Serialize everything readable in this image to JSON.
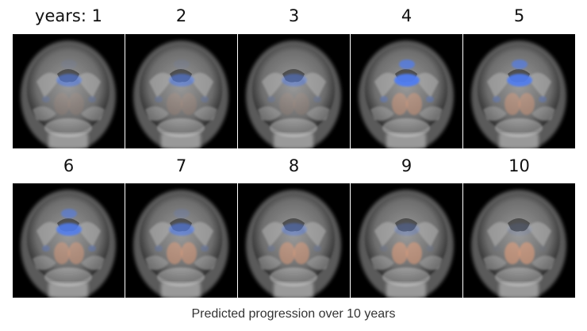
{
  "caption": "Predicted progression over 10 years",
  "panels": [
    {
      "label": "years: 1",
      "blue": 0.55,
      "orange": 0.15
    },
    {
      "label": "2",
      "blue": 0.55,
      "orange": 0.2
    },
    {
      "label": "3",
      "blue": 0.45,
      "orange": 0.15
    },
    {
      "label": "4",
      "blue": 0.95,
      "orange": 0.55
    },
    {
      "label": "5",
      "blue": 0.9,
      "orange": 0.55
    },
    {
      "label": "6",
      "blue": 0.85,
      "orange": 0.6
    },
    {
      "label": "7",
      "blue": 0.6,
      "orange": 0.65
    },
    {
      "label": "8",
      "blue": 0.4,
      "orange": 0.65
    },
    {
      "label": "9",
      "blue": 0.25,
      "orange": 0.7
    },
    {
      "label": "10",
      "blue": 0.1,
      "orange": 0.75
    }
  ],
  "colors": {
    "overlay_blue": "#4f7df2",
    "overlay_orange": "#f0a27a",
    "background": "#000000"
  }
}
